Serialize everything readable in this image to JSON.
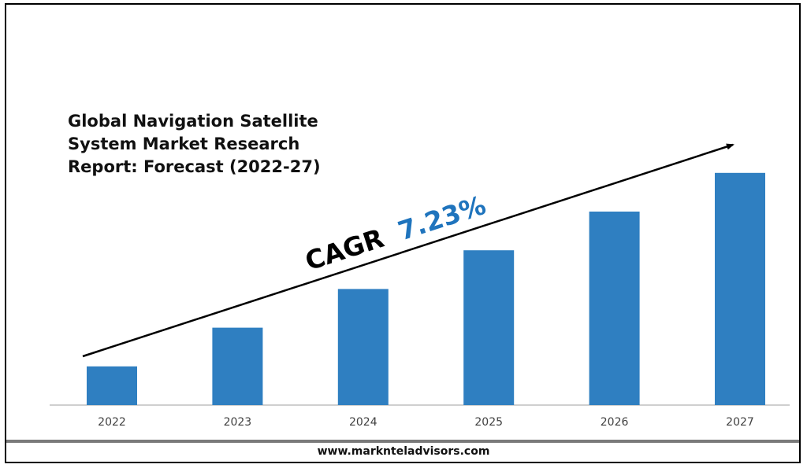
{
  "title_lines": [
    "Global Navigation Satellite",
    "System Market Research",
    "Report: Forecast (2022-27)"
  ],
  "cagr": {
    "label": "CAGR",
    "value": "7.23%",
    "value_color": "#1f74bd"
  },
  "footer": {
    "website": "www.marknteladvisors.com"
  },
  "colors": {
    "bar": "#2f7fc1",
    "axis": "#bfbfbf",
    "arrow": "#000000"
  },
  "chart_data": {
    "type": "bar",
    "title": "Global Navigation Satellite System Market Research Report: Forecast (2022-27)",
    "categories": [
      "2022",
      "2023",
      "2024",
      "2025",
      "2026",
      "2027"
    ],
    "values": [
      1.0,
      2.0,
      3.0,
      4.0,
      5.0,
      6.0
    ],
    "ylim": [
      0,
      6.2
    ],
    "xlabel": "",
    "ylabel": "",
    "grid": false,
    "legend": "none",
    "annotation": "CAGR 7.23%"
  }
}
